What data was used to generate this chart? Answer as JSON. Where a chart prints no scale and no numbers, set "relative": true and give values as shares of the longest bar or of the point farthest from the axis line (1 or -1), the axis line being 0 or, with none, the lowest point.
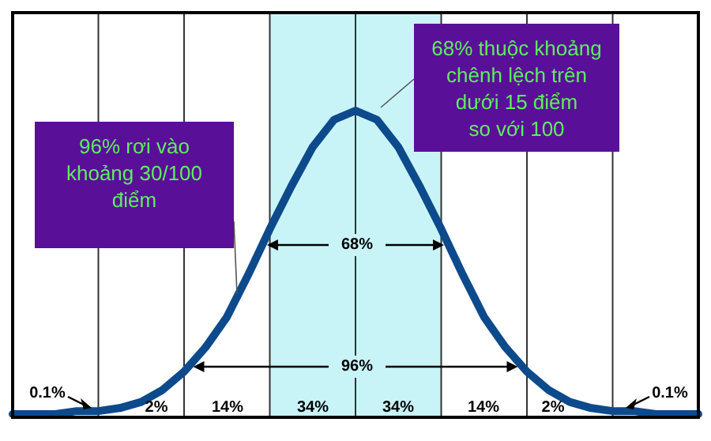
{
  "chart_data": {
    "type": "line",
    "relative": true,
    "categories": [
      null,
      null,
      null,
      null,
      null,
      null,
      null,
      null,
      null,
      null,
      null,
      null,
      null,
      null,
      null,
      null,
      null,
      null,
      null,
      null,
      null,
      null,
      null,
      null,
      null,
      null,
      null,
      null,
      null,
      null,
      null,
      null,
      null
    ],
    "series": [
      {
        "color": "#0d4a8c",
        "values": [
          0,
          0,
          0,
          0.01,
          0.01,
          0.02,
          0.04,
          0.08,
          0.14,
          0.22,
          0.32,
          0.46,
          0.61,
          0.75,
          0.88,
          0.97,
          1,
          0.97,
          0.88,
          0.75,
          0.61,
          0.46,
          0.32,
          0.22,
          0.14,
          0.08,
          0.04,
          0.02,
          0.01,
          0.01,
          0,
          0,
          0
        ]
      }
    ],
    "grid": "x",
    "marker": "none",
    "line_style": "solid",
    "annotations": [
      "96% rơi vào\nkhoảng 30/100\nđiểm",
      "68% thuộc khoảng\nchênh lệch trên\ndưới 15 điểm\nso với 100",
      "68%",
      "96%",
      "0.1%",
      "0.1%",
      "2%",
      "14%",
      "34%",
      "34%",
      "14%",
      "2%"
    ]
  }
}
